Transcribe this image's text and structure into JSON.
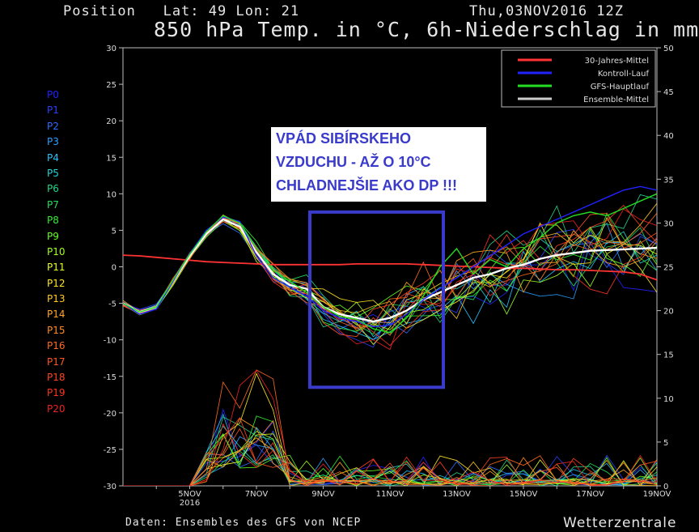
{
  "header": {
    "position": "Position   Lat: 49 Lon: 21",
    "date": "Thu,03NOV2016 12Z",
    "title": "850 hPa Temp. in °C, 6h-Niederschlag in mm"
  },
  "footer": {
    "source": "Daten: Ensembles des GFS von NCEP",
    "brand": "Wetterzentrale"
  },
  "annotation": {
    "line1": "VPÁD SIBÍRSKEHO",
    "line2": "VZDUCHU - AŽ O 10°C",
    "line3": "CHLADNEJŠIE AKO DP !!!",
    "color": "#3a3acb"
  },
  "members": [
    {
      "label": "P0",
      "color": "#2222ff"
    },
    {
      "label": "P1",
      "color": "#2a40ff"
    },
    {
      "label": "P2",
      "color": "#2f6cff"
    },
    {
      "label": "P3",
      "color": "#2aa0ff"
    },
    {
      "label": "P4",
      "color": "#22c4ff"
    },
    {
      "label": "P5",
      "color": "#22d6d6"
    },
    {
      "label": "P6",
      "color": "#22d68a"
    },
    {
      "label": "P7",
      "color": "#22e05a"
    },
    {
      "label": "P8",
      "color": "#33ee33"
    },
    {
      "label": "P9",
      "color": "#66ff22"
    },
    {
      "label": "P10",
      "color": "#a0ff22"
    },
    {
      "label": "P11",
      "color": "#e6ff22"
    },
    {
      "label": "P12",
      "color": "#ffe622"
    },
    {
      "label": "P13",
      "color": "#ffc822"
    },
    {
      "label": "P14",
      "color": "#ffa522"
    },
    {
      "label": "P15",
      "color": "#ff8a22"
    },
    {
      "label": "P16",
      "color": "#ff6a22"
    },
    {
      "label": "P17",
      "color": "#ff5522"
    },
    {
      "label": "P18",
      "color": "#ff4422"
    },
    {
      "label": "P19",
      "color": "#ff3322"
    },
    {
      "label": "P20",
      "color": "#ee2222"
    }
  ],
  "chart_data": {
    "type": "line",
    "x_unit": "days from 03NOV2016 12Z",
    "xlim": [
      0.5,
      16.5
    ],
    "xticks": [
      {
        "x": 2.5,
        "label": "5NOV",
        "sub": "2016"
      },
      {
        "x": 4.5,
        "label": "7NOV"
      },
      {
        "x": 6.5,
        "label": "9NOV"
      },
      {
        "x": 8.5,
        "label": "11NOV"
      },
      {
        "x": 10.5,
        "label": "13NOV"
      },
      {
        "x": 12.5,
        "label": "15NOV"
      },
      {
        "x": 14.5,
        "label": "17NOV"
      },
      {
        "x": 16.5,
        "label": "19NOV"
      }
    ],
    "ylim_left": [
      -30,
      30
    ],
    "yticks_left": [
      30,
      25,
      20,
      15,
      10,
      5,
      0,
      -5,
      -10,
      -15,
      -20,
      -25,
      -30
    ],
    "ylim_right": [
      0,
      50
    ],
    "yticks_right": [
      50,
      45,
      40,
      35,
      30,
      25,
      20,
      15,
      10,
      5,
      0
    ],
    "legend_position": "top-right",
    "grid": false,
    "legend": [
      {
        "name": "30-Jahres-Mittel",
        "color": "#ff3333"
      },
      {
        "name": "Kontroll-Lauf",
        "color": "#2222ff"
      },
      {
        "name": "GFS-Hauptlauf",
        "color": "#22dd22"
      },
      {
        "name": "Ensemble-Mittel",
        "color": "#cccccc"
      }
    ],
    "x": [
      0.5,
      1,
      1.5,
      2,
      2.5,
      3,
      3.5,
      4,
      4.5,
      5,
      5.5,
      6,
      6.5,
      7,
      7.5,
      8,
      8.5,
      9,
      9.5,
      10,
      10.5,
      11,
      11.5,
      12,
      12.5,
      13,
      13.5,
      14,
      14.5,
      15,
      15.5,
      16,
      16.5
    ],
    "series": [
      {
        "name": "30-Jahres-Mittel",
        "color": "#ff3333",
        "width": 1.8,
        "values": [
          1.6,
          1.5,
          1.3,
          1.1,
          0.9,
          0.7,
          0.6,
          0.5,
          0.4,
          0.3,
          0.3,
          0.3,
          0.3,
          0.3,
          0.4,
          0.4,
          0.4,
          0.4,
          0.3,
          0.2,
          0.1,
          0,
          -0.1,
          -0.2,
          -0.2,
          -0.3,
          -0.4,
          -0.4,
          -0.5,
          -0.6,
          -0.7,
          -1.0,
          -1.8
        ]
      },
      {
        "name": "Ensemble-Mittel",
        "color": "#ffffff",
        "width": 2.4,
        "values": [
          -5,
          -6.2,
          -5.5,
          -2,
          1.5,
          4.5,
          6.5,
          5.5,
          2,
          -1,
          -2.5,
          -3,
          -5.5,
          -6.5,
          -7,
          -7.5,
          -7,
          -6,
          -4.5,
          -3.5,
          -2.5,
          -1.5,
          -1,
          -0.2,
          0.3,
          1.1,
          1.6,
          1.9,
          2.2,
          2.3,
          2.4,
          2.5,
          2.6
        ]
      },
      {
        "name": "Kontroll-Lauf",
        "color": "#2222ff",
        "width": 1.4,
        "values": [
          -5,
          -6.5,
          -5.8,
          -2,
          1.8,
          5,
          6.8,
          6.2,
          1.5,
          -1.5,
          -2.8,
          -4,
          -6,
          -7,
          -7.5,
          -8.2,
          -8,
          -6.5,
          -4.5,
          -3,
          -1.5,
          0,
          1.5,
          3,
          4.5,
          5.5,
          6.5,
          7.5,
          8.5,
          9.5,
          10.5,
          11,
          10.5
        ]
      },
      {
        "name": "GFS-Hauptlauf",
        "color": "#22dd22",
        "width": 1.4,
        "values": [
          -5,
          -6.2,
          -5.5,
          -1.8,
          1.7,
          4.8,
          7,
          6,
          2.5,
          -0.5,
          -2,
          -3.5,
          -5.5,
          -6.8,
          -7.2,
          -8.5,
          -9,
          -7,
          -4,
          0,
          2.5,
          -1,
          1,
          0,
          2.5,
          4,
          6,
          7,
          7.5,
          7,
          8,
          9,
          10
        ]
      }
    ],
    "precipitation_note": "6h-Niederschlag spikes on right axis (mm)"
  }
}
